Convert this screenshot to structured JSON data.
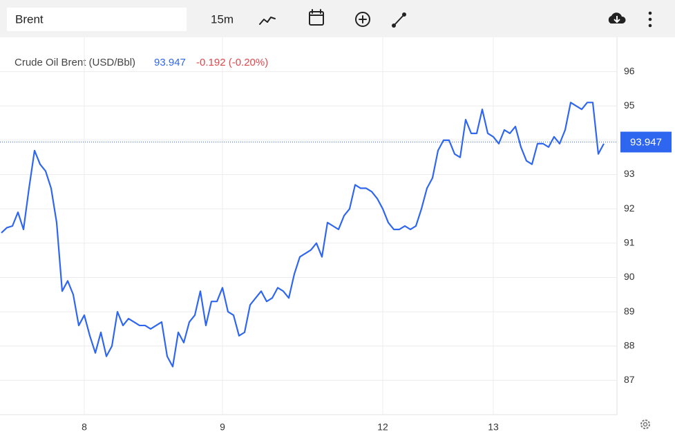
{
  "toolbar": {
    "symbol": "Brent",
    "interval": "15m"
  },
  "chart_data": {
    "type": "line",
    "title": "Crude Oil Brent (USD/Bbl)",
    "last_value": 93.947,
    "change": "-0.192 (-0.20%)",
    "color": "#2f66f0",
    "change_color": "#e0474c",
    "categories": [
      null,
      null,
      null,
      null,
      null,
      null,
      null,
      null,
      null,
      null,
      null,
      null,
      null,
      null,
      null,
      "8",
      null,
      null,
      null,
      null,
      null,
      null,
      null,
      null,
      null,
      null,
      null,
      null,
      null,
      null,
      null,
      null,
      null,
      null,
      null,
      null,
      null,
      null,
      null,
      null,
      "9",
      null,
      null,
      null,
      null,
      null,
      null,
      null,
      null,
      null,
      null,
      null,
      null,
      null,
      null,
      null,
      null,
      null,
      null,
      null,
      null,
      null,
      null,
      null,
      null,
      null,
      null,
      null,
      null,
      "12",
      null,
      null,
      null,
      null,
      null,
      null,
      null,
      null,
      null,
      null,
      null,
      null,
      null,
      null,
      null,
      null,
      null,
      null,
      null,
      "13",
      null,
      null,
      null,
      null,
      null,
      null,
      null,
      null,
      null,
      null,
      null,
      null,
      null,
      null,
      null,
      null,
      null,
      null,
      null,
      null
    ],
    "values": [
      91.3,
      91.45,
      91.5,
      91.9,
      91.4,
      92.6,
      93.7,
      93.3,
      93.1,
      92.6,
      91.6,
      89.6,
      89.9,
      89.5,
      88.6,
      88.9,
      88.3,
      87.8,
      88.4,
      87.7,
      88.0,
      89.0,
      88.6,
      88.8,
      88.7,
      88.6,
      88.6,
      88.5,
      88.6,
      88.7,
      87.7,
      87.4,
      88.4,
      88.1,
      88.7,
      88.9,
      89.6,
      88.6,
      89.3,
      89.3,
      89.7,
      89.0,
      88.9,
      88.3,
      88.4,
      89.2,
      89.4,
      89.6,
      89.3,
      89.4,
      89.7,
      89.6,
      89.4,
      90.1,
      90.6,
      90.7,
      90.8,
      91.0,
      90.6,
      91.6,
      91.5,
      91.4,
      91.8,
      92.0,
      92.7,
      92.6,
      92.6,
      92.5,
      92.3,
      92.0,
      91.6,
      91.4,
      91.4,
      91.5,
      91.4,
      91.5,
      92.0,
      92.6,
      92.9,
      93.7,
      94.0,
      94.0,
      93.6,
      93.5,
      94.6,
      94.2,
      94.2,
      94.9,
      94.2,
      94.1,
      93.9,
      94.3,
      94.2,
      94.4,
      93.8,
      93.4,
      93.3,
      93.9,
      93.9,
      93.8,
      94.1,
      93.9,
      94.3,
      95.1,
      95.0,
      94.9,
      95.1,
      95.1,
      93.6,
      93.9
    ],
    "ylim": [
      86,
      97
    ],
    "yticks": [
      87,
      88,
      89,
      90,
      91,
      92,
      93,
      94,
      95,
      96
    ],
    "grid": true,
    "y_axis_side": "right"
  }
}
